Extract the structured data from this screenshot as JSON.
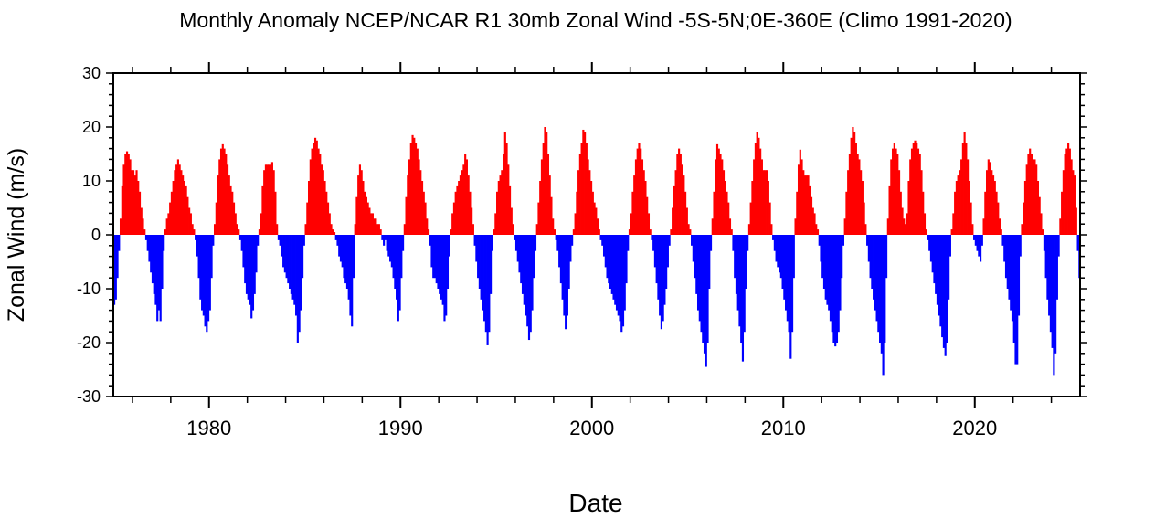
{
  "chart_data": {
    "type": "bar",
    "title": "Monthly Anomaly NCEP/NCAR R1 30mb Zonal Wind -5S-5N;0E-360E (Climo 1991-2020)",
    "xlabel": "Date",
    "ylabel": "Zonal Wind (m/s)",
    "xlim": [
      1975,
      2025.5
    ],
    "ylim": [
      -30,
      30
    ],
    "x_ticks": [
      1980,
      1990,
      2000,
      2010,
      2020
    ],
    "y_ticks": [
      -30,
      -20,
      -10,
      0,
      10,
      20,
      30
    ],
    "grid": false,
    "start_month": "1975-01",
    "frequency": "monthly",
    "colors": {
      "positive": "#ff0000",
      "negative": "#0000ff"
    },
    "values": [
      -13,
      -12,
      -8,
      -3,
      3,
      9,
      13,
      15,
      15.5,
      15,
      14,
      12,
      12,
      11,
      12,
      10,
      8,
      5,
      3,
      1,
      -1,
      -3,
      -5,
      -7,
      -9,
      -11,
      -13,
      -16,
      -14,
      -16,
      -10,
      -3,
      1,
      3,
      4,
      6,
      8,
      10,
      12,
      13,
      14,
      13,
      12,
      11,
      10,
      9,
      7,
      5,
      4,
      2,
      1,
      -1,
      -4,
      -8,
      -12,
      -14,
      -15,
      -17,
      -18,
      -16,
      -14,
      -8,
      -2,
      2,
      6,
      11,
      14,
      16,
      16.8,
      16,
      15,
      13,
      11,
      9,
      8,
      6,
      4,
      2,
      1,
      -1,
      -3,
      -6,
      -9,
      -11,
      -12,
      -13,
      -15.5,
      -14,
      -11,
      -7,
      -2,
      1,
      4,
      9,
      12,
      13,
      13,
      13,
      13,
      13.5,
      12,
      8,
      2,
      -1,
      -2,
      -4,
      -6,
      -7,
      -8,
      -9,
      -10,
      -11,
      -12,
      -13,
      -15,
      -20,
      -18,
      -14,
      -8,
      -2,
      2,
      6,
      10,
      14,
      16,
      17,
      18,
      17.5,
      16,
      15,
      13,
      12,
      10,
      8,
      6,
      4,
      2,
      1,
      0.5,
      -1,
      -2,
      -4,
      -5,
      -6,
      -8,
      -9,
      -10,
      -12,
      -15,
      -17,
      -8,
      2,
      7,
      11,
      13,
      12,
      10,
      8,
      7,
      6,
      5,
      4,
      4,
      3,
      3,
      2,
      2,
      1,
      -1,
      -2,
      -1,
      -3,
      -4,
      -5,
      -6,
      -8,
      -10,
      -12,
      -16,
      -14,
      -8,
      -3,
      2,
      7,
      11,
      14,
      17,
      18.5,
      18,
      17,
      16,
      14,
      12,
      10,
      8,
      6,
      3,
      1,
      -2,
      -6,
      -8,
      -8,
      -9,
      -10,
      -11,
      -12,
      -13,
      -16,
      -15,
      -10,
      -4,
      1,
      4,
      6,
      8,
      9,
      10,
      11,
      12,
      13,
      15,
      14,
      11,
      8,
      5,
      2,
      -2,
      -5,
      -8,
      -10,
      -12,
      -14,
      -16,
      -18,
      -20.5,
      -18,
      -11,
      -3,
      1,
      4,
      8,
      10,
      11,
      12,
      15,
      19,
      17,
      13,
      9,
      5,
      2,
      -1,
      -3,
      -5,
      -7,
      -9,
      -11,
      -13,
      -15,
      -17,
      -19.5,
      -18,
      -14,
      -8,
      -3,
      2,
      6,
      10,
      14,
      17,
      20,
      19,
      15,
      11,
      7,
      3,
      1,
      -1,
      -3,
      -6,
      -9,
      -12,
      -15,
      -17.5,
      -15,
      -10,
      -5,
      -2,
      1,
      4,
      8,
      12,
      15,
      17,
      19.5,
      19,
      17,
      14,
      12,
      10,
      8,
      6,
      5,
      3,
      1,
      -1,
      -2,
      -4,
      -6,
      -8,
      -9,
      -10,
      -11,
      -12,
      -13,
      -14,
      -15,
      -16,
      -18,
      -17,
      -14,
      -9,
      -3,
      1,
      4,
      8,
      11,
      14,
      16,
      17,
      16,
      14,
      12,
      10,
      7,
      4,
      1,
      -1,
      -3,
      -6,
      -9,
      -12,
      -15,
      -17.5,
      -16,
      -13,
      -10,
      -6,
      -2,
      1,
      5,
      9,
      12,
      15,
      16,
      15,
      13,
      11,
      8,
      5,
      2,
      1,
      -2,
      -5,
      -8,
      -11,
      -14,
      -16,
      -18,
      -20,
      -22,
      -24.5,
      -20,
      -10,
      -3,
      3,
      8,
      14,
      16.8,
      16,
      15,
      14,
      12,
      10,
      8,
      6,
      3,
      1,
      -3,
      -8,
      -11,
      -14,
      -17,
      -20,
      -23.5,
      -18,
      -10,
      -3,
      2,
      6,
      10,
      14,
      17,
      19,
      18,
      16,
      14,
      12,
      12,
      12,
      10,
      6,
      2,
      -1,
      -3,
      -5,
      -6,
      -7,
      -8,
      -10,
      -12,
      -14,
      -16,
      -18,
      -23,
      -18,
      -8,
      3,
      8,
      13,
      15.8,
      14,
      12,
      11,
      11,
      11,
      9,
      7,
      5,
      4,
      2,
      1,
      -2,
      -5,
      -8,
      -10,
      -12,
      -13,
      -14,
      -16,
      -18,
      -20,
      -20.7,
      -20,
      -18,
      -14,
      -8,
      -2,
      3,
      8,
      12,
      15,
      18,
      20,
      19,
      17,
      15,
      14,
      12,
      10,
      6,
      2,
      -2,
      -5,
      -8,
      -10,
      -12,
      -14,
      -16,
      -18,
      -20,
      -22,
      -26,
      -20,
      -8,
      3,
      9,
      14,
      16,
      17,
      16,
      15,
      12,
      8,
      5,
      3,
      2,
      4,
      10,
      14,
      16,
      17,
      17.5,
      17,
      16,
      15,
      12,
      8,
      4,
      1,
      -1,
      -3,
      -5,
      -7,
      -9,
      -11,
      -13,
      -15,
      -17,
      -19,
      -21,
      -22.5,
      -20,
      -12,
      -4,
      1,
      4,
      8,
      10,
      11,
      12,
      14,
      17,
      19,
      17,
      14,
      10,
      6,
      2,
      -1,
      -2,
      -3,
      -4,
      -5,
      -2,
      3,
      8,
      12,
      14,
      13.5,
      12,
      11,
      10,
      8,
      6,
      3,
      1,
      -2,
      -5,
      -8,
      -10,
      -12,
      -14,
      -16,
      -20,
      -24,
      -24,
      -15,
      -4,
      2,
      6,
      10,
      13,
      15,
      16,
      15,
      14,
      14,
      13,
      10,
      7,
      4,
      1,
      -3,
      -8,
      -12,
      -15,
      -18,
      -21,
      -26,
      -22,
      -12,
      -4,
      3,
      8,
      12,
      15,
      16,
      17,
      16,
      14,
      12,
      11,
      5,
      -3,
      -8
    ]
  }
}
